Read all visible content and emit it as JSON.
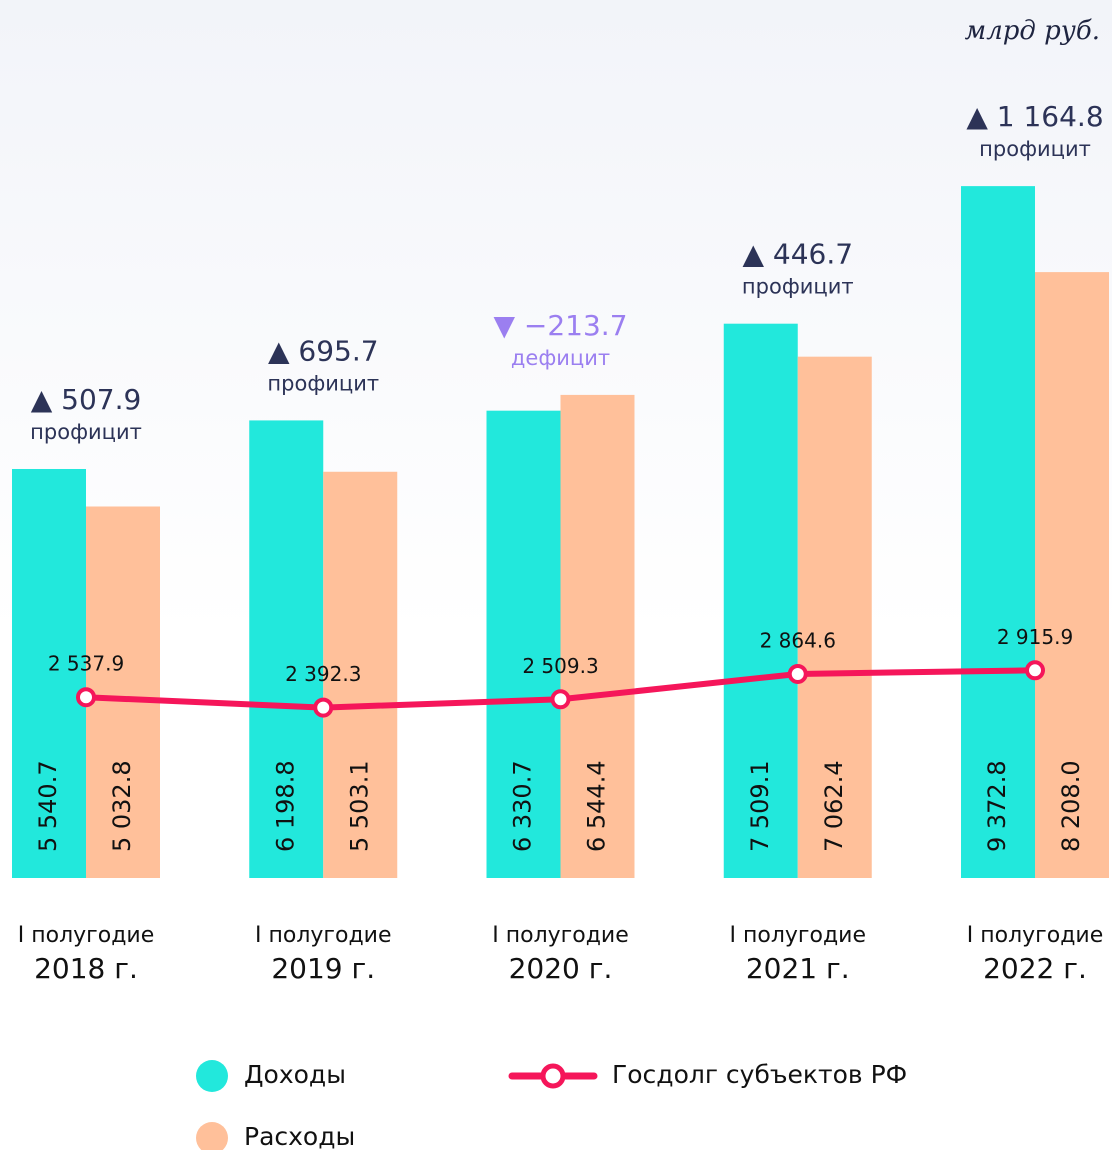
{
  "chart_data": {
    "type": "bar",
    "unit": "млрд руб.",
    "categories": [
      [
        "I полугодие",
        "2018 г."
      ],
      [
        "I полугодие",
        "2019 г."
      ],
      [
        "I полугодие",
        "2020 г."
      ],
      [
        "I полугодие",
        "2021 г."
      ],
      [
        "I полугодие",
        "2022 г."
      ]
    ],
    "ylim": [
      0,
      11000
    ],
    "y2lim": [
      0,
      11400
    ],
    "series": [
      {
        "name": "Доходы",
        "color": "#22e8dc",
        "values": [
          5540.7,
          6198.8,
          6330.7,
          7509.1,
          9372.8
        ],
        "value_labels": [
          "5 540.7",
          "6 198.8",
          "6 330.7",
          "7 509.1",
          "9 372.8"
        ]
      },
      {
        "name": "Расходы",
        "color": "#ffc09a",
        "values": [
          5032.8,
          5503.1,
          6544.4,
          7062.4,
          8208.0
        ],
        "value_labels": [
          "5 032.8",
          "5 503.1",
          "6 544.4",
          "7 062.4",
          "8 208.0"
        ]
      },
      {
        "name": "Госдолг субъектов РФ",
        "type": "line",
        "axis": "y2",
        "color": "#f5165a",
        "values": [
          2537.9,
          2392.3,
          2509.3,
          2864.6,
          2915.9
        ],
        "value_labels": [
          "2 537.9",
          "2 392.3",
          "2 509.3",
          "2 864.6",
          "2 915.9"
        ]
      }
    ],
    "annotations": [
      {
        "value": 507.9,
        "label": "▲ 507.9",
        "text": "профицит",
        "color": "#2c3357"
      },
      {
        "value": 695.7,
        "label": "▲ 695.7",
        "text": "профицит",
        "color": "#2c3357"
      },
      {
        "value": -213.7,
        "label": "▼ −213.7",
        "text": "дефицит",
        "color": "#9b7ff0"
      },
      {
        "value": 446.7,
        "label": "▲ 446.7",
        "text": "профицит",
        "color": "#2c3357"
      },
      {
        "value": 1164.8,
        "label": "▲ 1 164.8",
        "text": "профицит",
        "color": "#2c3357"
      }
    ]
  }
}
